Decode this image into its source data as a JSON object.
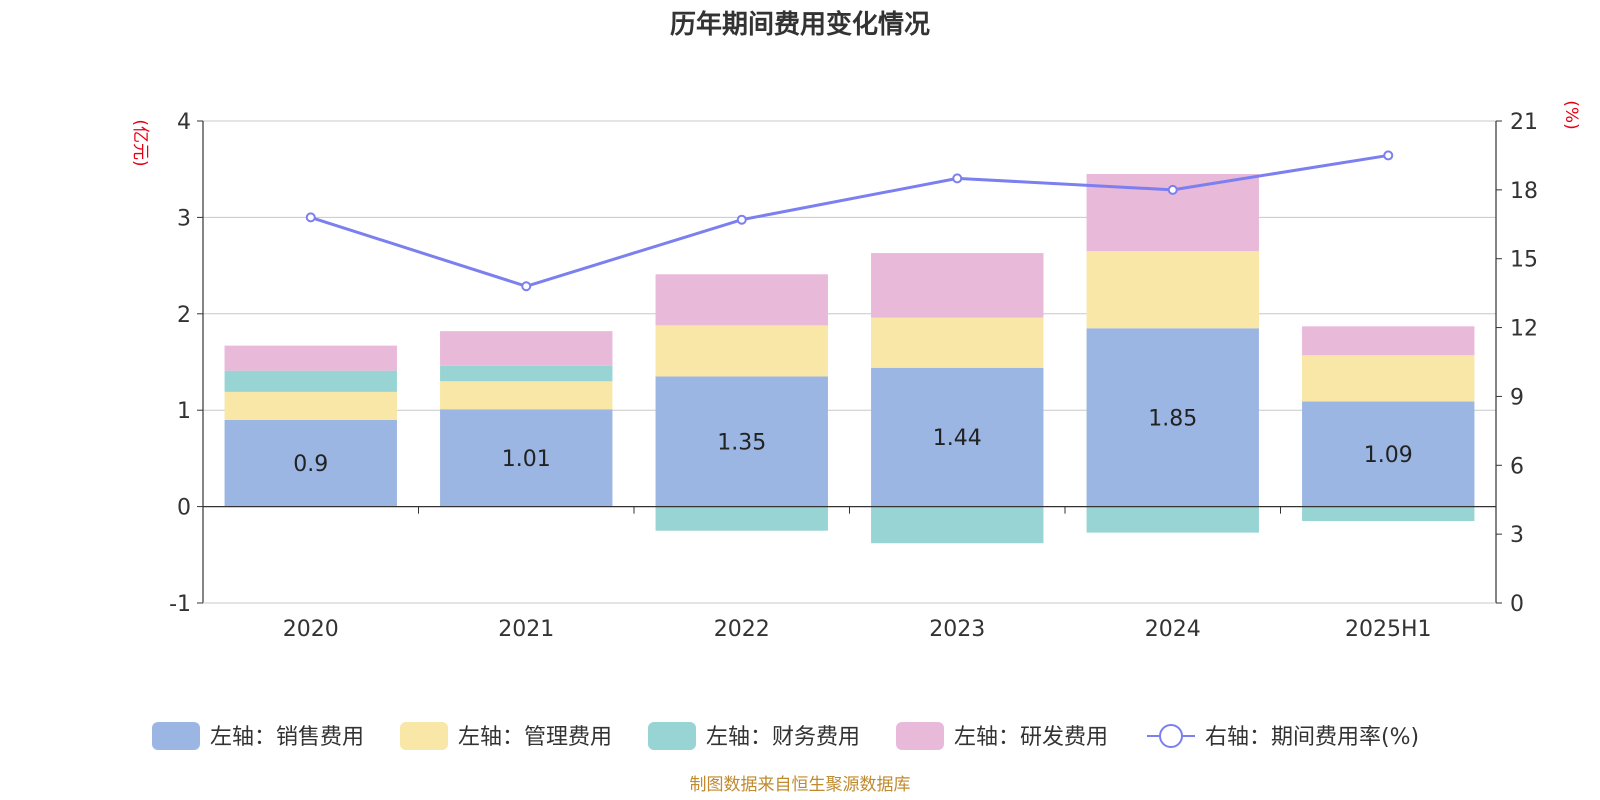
{
  "chart_data": {
    "type": "bar",
    "title": "历年期间费用变化情况",
    "categories": [
      "2020",
      "2021",
      "2022",
      "2023",
      "2024",
      "2025H1"
    ],
    "series": [
      {
        "name": "左轴：销售费用",
        "axis": "left",
        "type": "bar",
        "color": "#9bb6e2",
        "values": [
          0.9,
          1.01,
          1.35,
          1.44,
          1.85,
          1.09
        ],
        "show_labels": true
      },
      {
        "name": "左轴：管理费用",
        "axis": "left",
        "type": "bar",
        "color": "#f8e7a6",
        "values": [
          0.29,
          0.29,
          0.53,
          0.52,
          0.8,
          0.48
        ]
      },
      {
        "name": "左轴：财务费用",
        "axis": "left",
        "type": "bar",
        "color": "#98d4d4",
        "values": [
          0.22,
          0.16,
          -0.25,
          -0.38,
          -0.27,
          -0.15
        ]
      },
      {
        "name": "左轴：研发费用",
        "axis": "left",
        "type": "bar",
        "color": "#e8b9d9",
        "values": [
          0.26,
          0.36,
          0.53,
          0.67,
          0.8,
          0.3
        ]
      },
      {
        "name": "右轴：期间费用率(%)",
        "axis": "right",
        "type": "line",
        "color": "#7b7fef",
        "values": [
          16.8,
          13.8,
          16.7,
          18.5,
          18.0,
          19.5
        ]
      }
    ],
    "left_axis": {
      "unit": "(亿元)",
      "min": -1,
      "max": 4,
      "ticks": [
        -1,
        0,
        1,
        2,
        3,
        4
      ]
    },
    "right_axis": {
      "unit": "(%)",
      "min": 0,
      "max": 21,
      "ticks": [
        0,
        3,
        6,
        9,
        12,
        15,
        18,
        21
      ]
    },
    "grid": true,
    "legend_position": "bottom"
  },
  "source_note": "制图数据来自恒生聚源数据库"
}
